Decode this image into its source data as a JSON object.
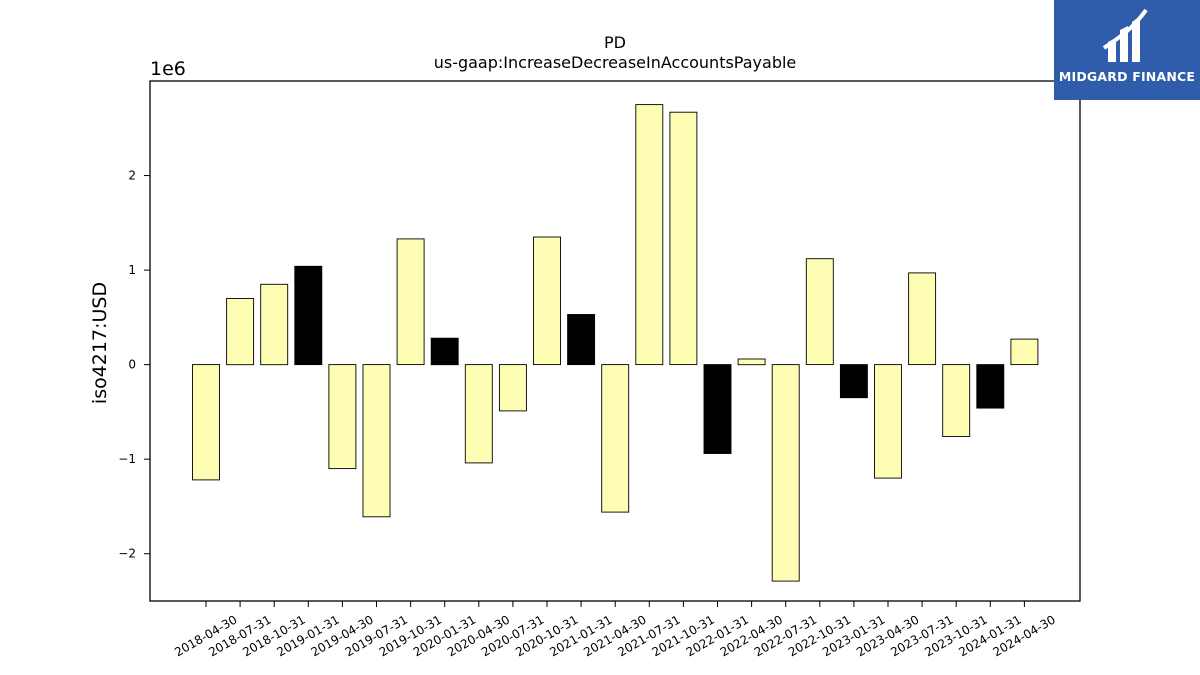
{
  "chart_data": {
    "type": "bar",
    "title": "PD",
    "subtitle": "us-gaap:IncreaseDecreaseInAccountsPayable",
    "ylabel": "iso4217:USD",
    "xlabel": "",
    "y_scale_label": "1e6",
    "ylim": [
      -2.5,
      3.0
    ],
    "y_ticks": [
      -2,
      -1,
      0,
      1,
      2
    ],
    "y_tick_labels": [
      "−2",
      "−1",
      "0",
      "1",
      "2"
    ],
    "grid": false,
    "categories": [
      "2018-04-30",
      "2018-07-31",
      "2018-10-31",
      "2019-01-31",
      "2019-04-30",
      "2019-07-31",
      "2019-10-31",
      "2020-01-31",
      "2020-04-30",
      "2020-07-31",
      "2020-10-31",
      "2021-01-31",
      "2021-04-30",
      "2021-07-31",
      "2021-10-31",
      "2022-01-31",
      "2022-04-30",
      "2022-07-31",
      "2022-10-31",
      "2023-01-31",
      "2023-04-30",
      "2023-07-31",
      "2023-10-31",
      "2024-01-31",
      "2024-04-30"
    ],
    "values": [
      -1.22,
      0.7,
      0.85,
      1.04,
      -1.1,
      -1.61,
      1.33,
      0.28,
      -1.04,
      -0.49,
      1.35,
      0.53,
      -1.56,
      2.75,
      2.67,
      -0.94,
      0.06,
      -2.29,
      1.12,
      -0.35,
      -1.2,
      0.97,
      -0.76,
      -0.46,
      0.27
    ],
    "highlight": [
      false,
      false,
      false,
      true,
      false,
      false,
      false,
      true,
      false,
      false,
      false,
      true,
      false,
      false,
      false,
      true,
      false,
      false,
      false,
      true,
      false,
      false,
      false,
      true,
      false
    ],
    "colors": {
      "bar": "#fdfdb3",
      "highlight": "#000000",
      "edge": "#000000"
    }
  },
  "logo": {
    "text": "MIDGARD FINANCE",
    "background": "#2f5cab"
  }
}
